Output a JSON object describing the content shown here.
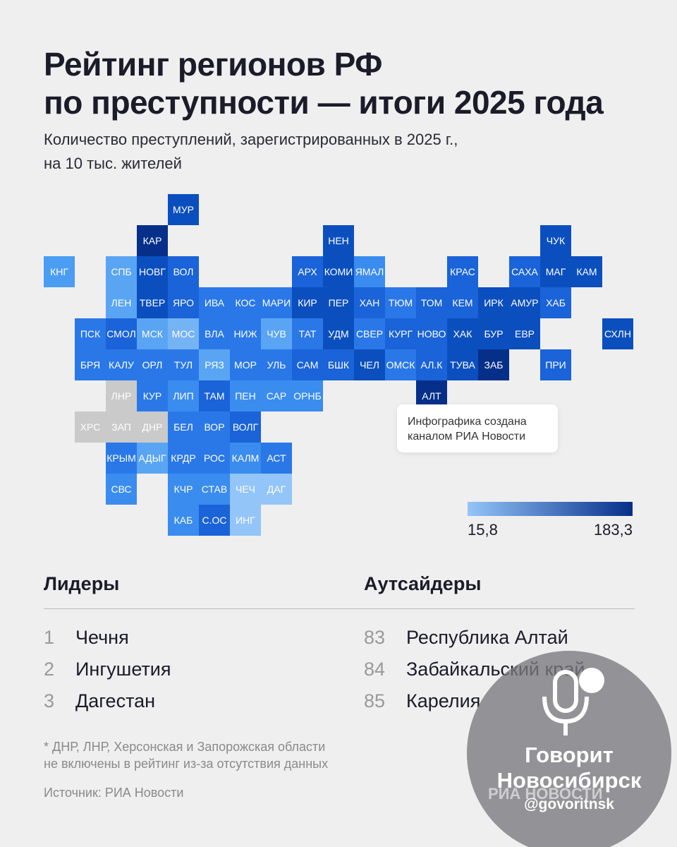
{
  "header": {
    "title": [
      "Рейтинг регионов РФ",
      "по преступности — итоги 2025 года"
    ],
    "subtitle": [
      "Количество преступлений, зарегистрированных в 2025 г.,",
      "на 10 тыс. жителей"
    ]
  },
  "map": {
    "rows": [
      [
        null,
        null,
        null,
        null,
        {
          "label": "МУР",
          "color": "#0b4fbf"
        }
      ],
      [
        null,
        null,
        null,
        {
          "label": "КАР",
          "color": "#062f8a"
        },
        null,
        null,
        null,
        null,
        null,
        {
          "label": "НЕН",
          "color": "#0b4fbf"
        },
        null,
        null,
        null,
        null,
        null,
        null,
        {
          "label": "ЧУК",
          "color": "#0b4fbf"
        }
      ],
      [
        {
          "label": "КНГ",
          "color": "#4a9df2"
        },
        null,
        {
          "label": "СПБ",
          "color": "#5aa5f3"
        },
        {
          "label": "НОВГ",
          "color": "#0b4fbf"
        },
        {
          "label": "ВОЛ",
          "color": "#1a63d8"
        },
        null,
        null,
        null,
        {
          "label": "АРХ",
          "color": "#1a63d8"
        },
        {
          "label": "КОМИ",
          "color": "#0b4fbf"
        },
        {
          "label": "ЯМАЛ",
          "color": "#3a8cef"
        },
        null,
        null,
        {
          "label": "КРАС",
          "color": "#1a63d8"
        },
        null,
        {
          "label": "САХА",
          "color": "#1a63d8"
        },
        {
          "label": "МАГ",
          "color": "#0b4fbf"
        },
        {
          "label": "КАМ",
          "color": "#0b4fbf"
        }
      ],
      [
        null,
        null,
        {
          "label": "ЛЕН",
          "color": "#5aa5f3"
        },
        {
          "label": "ТВЕР",
          "color": "#0b4fbf"
        },
        {
          "label": "ЯРО",
          "color": "#1a63d8"
        },
        {
          "label": "ИВА",
          "color": "#2a78e8"
        },
        {
          "label": "КОС",
          "color": "#2a78e8"
        },
        {
          "label": "МАРИ",
          "color": "#2a78e8"
        },
        {
          "label": "КИР",
          "color": "#0b4fbf"
        },
        {
          "label": "ПЕР",
          "color": "#0b4fbf"
        },
        {
          "label": "ХАН",
          "color": "#1a63d8"
        },
        {
          "label": "ТЮМ",
          "color": "#2a78e8"
        },
        {
          "label": "ТОМ",
          "color": "#1a63d8"
        },
        {
          "label": "КЕМ",
          "color": "#1a63d8"
        },
        {
          "label": "ИРК",
          "color": "#0b4fbf"
        },
        {
          "label": "АМУР",
          "color": "#0b4fbf"
        },
        {
          "label": "ХАБ",
          "color": "#1a63d8"
        }
      ],
      [
        null,
        {
          "label": "ПСК",
          "color": "#2a78e8"
        },
        {
          "label": "СМОЛ",
          "color": "#1a63d8"
        },
        {
          "label": "МСК",
          "color": "#5aa5f3"
        },
        {
          "label": "МОС",
          "color": "#74b4f5"
        },
        {
          "label": "ВЛА",
          "color": "#2a78e8"
        },
        {
          "label": "НИЖ",
          "color": "#2a78e8"
        },
        {
          "label": "ЧУВ",
          "color": "#5aa5f3"
        },
        {
          "label": "ТАТ",
          "color": "#2a78e8"
        },
        {
          "label": "УДМ",
          "color": "#0b4fbf"
        },
        {
          "label": "СВЕР",
          "color": "#2a78e8"
        },
        {
          "label": "КУРГ",
          "color": "#1a63d8"
        },
        {
          "label": "НОВО",
          "color": "#1a63d8"
        },
        {
          "label": "ХАК",
          "color": "#0b4fbf"
        },
        {
          "label": "БУР",
          "color": "#0b4fbf"
        },
        {
          "label": "ЕВР",
          "color": "#0b4fbf"
        },
        null,
        null,
        {
          "label": "СХЛН",
          "color": "#0b4fbf"
        }
      ],
      [
        null,
        {
          "label": "БРЯ",
          "color": "#2a78e8"
        },
        {
          "label": "КАЛУ",
          "color": "#2a78e8"
        },
        {
          "label": "ОРЛ",
          "color": "#2a78e8"
        },
        {
          "label": "ТУЛ",
          "color": "#2a78e8"
        },
        {
          "label": "РЯЗ",
          "color": "#5aa5f3"
        },
        {
          "label": "МОР",
          "color": "#2a78e8"
        },
        {
          "label": "УЛЬ",
          "color": "#2a78e8"
        },
        {
          "label": "САМ",
          "color": "#1a63d8"
        },
        {
          "label": "БШК",
          "color": "#1a63d8"
        },
        {
          "label": "ЧЕЛ",
          "color": "#0b4fbf"
        },
        {
          "label": "ОМСК",
          "color": "#2a78e8"
        },
        {
          "label": "АЛ.К",
          "color": "#1a63d8"
        },
        {
          "label": "ТУВА",
          "color": "#0b4fbf"
        },
        {
          "label": "ЗАБ",
          "color": "#062f8a"
        },
        null,
        {
          "label": "ПРИ",
          "color": "#1a63d8"
        }
      ],
      [
        null,
        null,
        {
          "label": "ЛНР",
          "color": "#cacaca"
        },
        {
          "label": "КУР",
          "color": "#2a78e8"
        },
        {
          "label": "ЛИП",
          "color": "#3a8cef"
        },
        {
          "label": "ТАМ",
          "color": "#1a63d8"
        },
        {
          "label": "ПЕН",
          "color": "#3a8cef"
        },
        {
          "label": "САР",
          "color": "#3a8cef"
        },
        {
          "label": "ОРНБ",
          "color": "#3a8cef"
        },
        null,
        null,
        null,
        {
          "label": "АЛТ",
          "color": "#062f8a"
        }
      ],
      [
        null,
        {
          "label": "ХРС",
          "color": "#cacaca"
        },
        {
          "label": "ЗАП",
          "color": "#cacaca"
        },
        {
          "label": "ДНР",
          "color": "#cacaca"
        },
        {
          "label": "БЕЛ",
          "color": "#2a78e8"
        },
        {
          "label": "ВОР",
          "color": "#2a78e8"
        },
        {
          "label": "ВОЛГ",
          "color": "#1a63d8"
        }
      ],
      [
        null,
        null,
        {
          "label": "КРЫМ",
          "color": "#2a78e8"
        },
        {
          "label": "АДЫГ",
          "color": "#5aa5f3"
        },
        {
          "label": "КРДР",
          "color": "#2a78e8"
        },
        {
          "label": "РОС",
          "color": "#2a78e8"
        },
        {
          "label": "КАЛМ",
          "color": "#3a8cef"
        },
        {
          "label": "АСТ",
          "color": "#2a78e8"
        }
      ],
      [
        null,
        null,
        {
          "label": "СВС",
          "color": "#3a8cef"
        },
        null,
        {
          "label": "КЧР",
          "color": "#3a8cef"
        },
        {
          "label": "СТАВ",
          "color": "#3a8cef"
        },
        {
          "label": "ЧЕЧ",
          "color": "#93c5f8"
        },
        {
          "label": "ДАГ",
          "color": "#93c5f8"
        }
      ],
      [
        null,
        null,
        null,
        null,
        {
          "label": "КАБ",
          "color": "#3a8cef"
        },
        {
          "label": "С.ОС",
          "color": "#1a63d8"
        },
        {
          "label": "ИНГ",
          "color": "#93c5f8"
        }
      ]
    ]
  },
  "note": [
    "Инфографика создана",
    "каналом РИА Новости"
  ],
  "legend": {
    "min_label": "15,8",
    "max_label": "183,3",
    "colors": [
      "#93c5f8",
      "#062f8a"
    ]
  },
  "leaders": {
    "title": "Лидеры",
    "items": [
      {
        "rank": "1",
        "name": "Чечня"
      },
      {
        "rank": "2",
        "name": "Ингушетия"
      },
      {
        "rank": "3",
        "name": "Дагестан"
      }
    ]
  },
  "outsiders": {
    "title": "Аутсайдеры",
    "items": [
      {
        "rank": "83",
        "name": "Республика Алтай"
      },
      {
        "rank": "84",
        "name": "Забайкальский край"
      },
      {
        "rank": "85",
        "name": "Карелия"
      }
    ]
  },
  "footnote": [
    "* ДНР, ЛНР, Херсонская и Запорожская области",
    "не включены в рейтинг из-за отсутствия данных"
  ],
  "source": "Источник: РИА Новости",
  "watermark": {
    "name": [
      "Говорит",
      "Новосибирск"
    ],
    "brand": "РИА НОВОСТИ",
    "handle": "@govoritnsk"
  }
}
